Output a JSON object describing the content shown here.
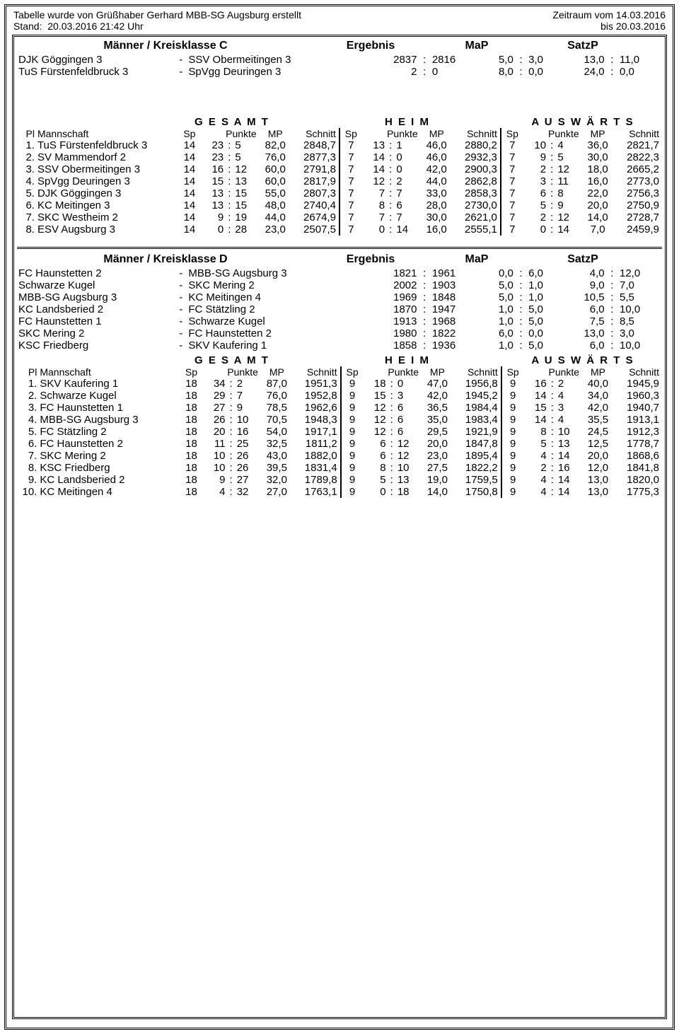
{
  "header": {
    "left1": "Tabelle wurde von Grüßhaber Gerhard MBB-SG Augsburg erstellt",
    "right1_label": "Zeitraum vom",
    "right1_date": "14.03.2016",
    "left2_label": "Stand:",
    "left2_value": "20.03.2016  21:42 Uhr",
    "right2_label": "bis",
    "right2_date": "20.03.2016"
  },
  "sectionC": {
    "title": "Männer / Kreisklasse C",
    "col_ergebnis": "Ergebnis",
    "col_map": "MaP",
    "col_satzp": "SatzP",
    "fixtures": [
      {
        "home": "DJK Göggingen 3",
        "away": "SSV Obermeitingen 3",
        "s1": "2837",
        "s2": "2816",
        "m1": "5,0",
        "m2": "3,0",
        "p1": "13,0",
        "p2": "11,0"
      },
      {
        "home": "TuS Fürstenfeldbruck 3",
        "away": "SpVgg Deuringen 3",
        "s1": "2",
        "s2": "0",
        "m1": "8,0",
        "m2": "0,0",
        "p1": "24,0",
        "p2": "0,0"
      }
    ],
    "gesamt": "G E S A M T",
    "heim": "H E I M",
    "auswaerts": "A U S W Ä R T S",
    "lbl_pl": "Pl",
    "lbl_mannschaft": "Mannschaft",
    "lbl_sp": "Sp",
    "lbl_punkte": "Punkte",
    "lbl_mp": "MP",
    "lbl_schnitt": "Schnitt",
    "rows": [
      {
        "pl": "1.",
        "team": "TuS Fürstenfeldbruck 3",
        "g": {
          "sp": "14",
          "p1": "23",
          "p2": "5",
          "mp": "82,0",
          "sc": "2848,7"
        },
        "h": {
          "sp": "7",
          "p1": "13",
          "p2": "1",
          "mp": "46,0",
          "sc": "2880,2"
        },
        "a": {
          "sp": "7",
          "p1": "10",
          "p2": "4",
          "mp": "36,0",
          "sc": "2821,7"
        }
      },
      {
        "pl": "2.",
        "team": "SV Mammendorf 2",
        "g": {
          "sp": "14",
          "p1": "23",
          "p2": "5",
          "mp": "76,0",
          "sc": "2877,3"
        },
        "h": {
          "sp": "7",
          "p1": "14",
          "p2": "0",
          "mp": "46,0",
          "sc": "2932,3"
        },
        "a": {
          "sp": "7",
          "p1": "9",
          "p2": "5",
          "mp": "30,0",
          "sc": "2822,3"
        }
      },
      {
        "pl": "3.",
        "team": "SSV Obermeitingen 3",
        "g": {
          "sp": "14",
          "p1": "16",
          "p2": "12",
          "mp": "60,0",
          "sc": "2791,8"
        },
        "h": {
          "sp": "7",
          "p1": "14",
          "p2": "0",
          "mp": "42,0",
          "sc": "2900,3"
        },
        "a": {
          "sp": "7",
          "p1": "2",
          "p2": "12",
          "mp": "18,0",
          "sc": "2665,2"
        }
      },
      {
        "pl": "4.",
        "team": "SpVgg Deuringen 3",
        "g": {
          "sp": "14",
          "p1": "15",
          "p2": "13",
          "mp": "60,0",
          "sc": "2817,9"
        },
        "h": {
          "sp": "7",
          "p1": "12",
          "p2": "2",
          "mp": "44,0",
          "sc": "2862,8"
        },
        "a": {
          "sp": "7",
          "p1": "3",
          "p2": "11",
          "mp": "16,0",
          "sc": "2773,0"
        }
      },
      {
        "pl": "5.",
        "team": "DJK Göggingen 3",
        "g": {
          "sp": "14",
          "p1": "13",
          "p2": "15",
          "mp": "55,0",
          "sc": "2807,3"
        },
        "h": {
          "sp": "7",
          "p1": "7",
          "p2": "7",
          "mp": "33,0",
          "sc": "2858,3"
        },
        "a": {
          "sp": "7",
          "p1": "6",
          "p2": "8",
          "mp": "22,0",
          "sc": "2756,3"
        }
      },
      {
        "pl": "6.",
        "team": "KC Meitingen 3",
        "g": {
          "sp": "14",
          "p1": "13",
          "p2": "15",
          "mp": "48,0",
          "sc": "2740,4"
        },
        "h": {
          "sp": "7",
          "p1": "8",
          "p2": "6",
          "mp": "28,0",
          "sc": "2730,0"
        },
        "a": {
          "sp": "7",
          "p1": "5",
          "p2": "9",
          "mp": "20,0",
          "sc": "2750,9"
        }
      },
      {
        "pl": "7.",
        "team": "SKC Westheim 2",
        "g": {
          "sp": "14",
          "p1": "9",
          "p2": "19",
          "mp": "44,0",
          "sc": "2674,9"
        },
        "h": {
          "sp": "7",
          "p1": "7",
          "p2": "7",
          "mp": "30,0",
          "sc": "2621,0"
        },
        "a": {
          "sp": "7",
          "p1": "2",
          "p2": "12",
          "mp": "14,0",
          "sc": "2728,7"
        }
      },
      {
        "pl": "8.",
        "team": "ESV Augsburg 3",
        "g": {
          "sp": "14",
          "p1": "0",
          "p2": "28",
          "mp": "23,0",
          "sc": "2507,5"
        },
        "h": {
          "sp": "7",
          "p1": "0",
          "p2": "14",
          "mp": "16,0",
          "sc": "2555,1"
        },
        "a": {
          "sp": "7",
          "p1": "0",
          "p2": "14",
          "mp": "7,0",
          "sc": "2459,9"
        }
      }
    ]
  },
  "sectionD": {
    "title": "Männer / Kreisklasse D",
    "col_ergebnis": "Ergebnis",
    "col_map": "MaP",
    "col_satzp": "SatzP",
    "fixtures": [
      {
        "home": "FC Haunstetten 2",
        "away": "MBB-SG Augsburg 3",
        "s1": "1821",
        "s2": "1961",
        "m1": "0,0",
        "m2": "6,0",
        "p1": "4,0",
        "p2": "12,0"
      },
      {
        "home": "Schwarze Kugel",
        "away": "SKC Mering 2",
        "s1": "2002",
        "s2": "1903",
        "m1": "5,0",
        "m2": "1,0",
        "p1": "9,0",
        "p2": "7,0"
      },
      {
        "home": "MBB-SG Augsburg 3",
        "away": "KC Meitingen 4",
        "s1": "1969",
        "s2": "1848",
        "m1": "5,0",
        "m2": "1,0",
        "p1": "10,5",
        "p2": "5,5"
      },
      {
        "home": "KC Landsberied 2",
        "away": "FC Stätzling 2",
        "s1": "1870",
        "s2": "1947",
        "m1": "1,0",
        "m2": "5,0",
        "p1": "6,0",
        "p2": "10,0"
      },
      {
        "home": "FC Haunstetten 1",
        "away": "Schwarze Kugel",
        "s1": "1913",
        "s2": "1968",
        "m1": "1,0",
        "m2": "5,0",
        "p1": "7,5",
        "p2": "8,5"
      },
      {
        "home": "SKC Mering 2",
        "away": "FC Haunstetten 2",
        "s1": "1980",
        "s2": "1822",
        "m1": "6,0",
        "m2": "0,0",
        "p1": "13,0",
        "p2": "3,0"
      },
      {
        "home": "KSC Friedberg",
        "away": "SKV Kaufering 1",
        "s1": "1858",
        "s2": "1936",
        "m1": "1,0",
        "m2": "5,0",
        "p1": "6,0",
        "p2": "10,0"
      }
    ],
    "gesamt": "G E S A M T",
    "heim": "H E I M",
    "auswaerts": "A U S W Ä R T S",
    "lbl_pl": "Pl",
    "lbl_mannschaft": "Mannschaft",
    "lbl_sp": "Sp",
    "lbl_punkte": "Punkte",
    "lbl_mp": "MP",
    "lbl_schnitt": "Schnitt",
    "rows": [
      {
        "pl": "1.",
        "team": "SKV Kaufering 1",
        "g": {
          "sp": "18",
          "p1": "34",
          "p2": "2",
          "mp": "87,0",
          "sc": "1951,3"
        },
        "h": {
          "sp": "9",
          "p1": "18",
          "p2": "0",
          "mp": "47,0",
          "sc": "1956,8"
        },
        "a": {
          "sp": "9",
          "p1": "16",
          "p2": "2",
          "mp": "40,0",
          "sc": "1945,9"
        }
      },
      {
        "pl": "2.",
        "team": "Schwarze Kugel",
        "g": {
          "sp": "18",
          "p1": "29",
          "p2": "7",
          "mp": "76,0",
          "sc": "1952,8"
        },
        "h": {
          "sp": "9",
          "p1": "15",
          "p2": "3",
          "mp": "42,0",
          "sc": "1945,2"
        },
        "a": {
          "sp": "9",
          "p1": "14",
          "p2": "4",
          "mp": "34,0",
          "sc": "1960,3"
        }
      },
      {
        "pl": "3.",
        "team": "FC Haunstetten 1",
        "g": {
          "sp": "18",
          "p1": "27",
          "p2": "9",
          "mp": "78,5",
          "sc": "1962,6"
        },
        "h": {
          "sp": "9",
          "p1": "12",
          "p2": "6",
          "mp": "36,5",
          "sc": "1984,4"
        },
        "a": {
          "sp": "9",
          "p1": "15",
          "p2": "3",
          "mp": "42,0",
          "sc": "1940,7"
        }
      },
      {
        "pl": "4.",
        "team": "MBB-SG Augsburg 3",
        "g": {
          "sp": "18",
          "p1": "26",
          "p2": "10",
          "mp": "70,5",
          "sc": "1948,3"
        },
        "h": {
          "sp": "9",
          "p1": "12",
          "p2": "6",
          "mp": "35,0",
          "sc": "1983,4"
        },
        "a": {
          "sp": "9",
          "p1": "14",
          "p2": "4",
          "mp": "35,5",
          "sc": "1913,1"
        }
      },
      {
        "pl": "5.",
        "team": "FC Stätzling 2",
        "g": {
          "sp": "18",
          "p1": "20",
          "p2": "16",
          "mp": "54,0",
          "sc": "1917,1"
        },
        "h": {
          "sp": "9",
          "p1": "12",
          "p2": "6",
          "mp": "29,5",
          "sc": "1921,9"
        },
        "a": {
          "sp": "9",
          "p1": "8",
          "p2": "10",
          "mp": "24,5",
          "sc": "1912,3"
        }
      },
      {
        "pl": "6.",
        "team": "FC Haunstetten 2",
        "g": {
          "sp": "18",
          "p1": "11",
          "p2": "25",
          "mp": "32,5",
          "sc": "1811,2"
        },
        "h": {
          "sp": "9",
          "p1": "6",
          "p2": "12",
          "mp": "20,0",
          "sc": "1847,8"
        },
        "a": {
          "sp": "9",
          "p1": "5",
          "p2": "13",
          "mp": "12,5",
          "sc": "1778,7"
        }
      },
      {
        "pl": "7.",
        "team": "SKC Mering 2",
        "g": {
          "sp": "18",
          "p1": "10",
          "p2": "26",
          "mp": "43,0",
          "sc": "1882,0"
        },
        "h": {
          "sp": "9",
          "p1": "6",
          "p2": "12",
          "mp": "23,0",
          "sc": "1895,4"
        },
        "a": {
          "sp": "9",
          "p1": "4",
          "p2": "14",
          "mp": "20,0",
          "sc": "1868,6"
        }
      },
      {
        "pl": "8.",
        "team": "KSC Friedberg",
        "g": {
          "sp": "18",
          "p1": "10",
          "p2": "26",
          "mp": "39,5",
          "sc": "1831,4"
        },
        "h": {
          "sp": "9",
          "p1": "8",
          "p2": "10",
          "mp": "27,5",
          "sc": "1822,2"
        },
        "a": {
          "sp": "9",
          "p1": "2",
          "p2": "16",
          "mp": "12,0",
          "sc": "1841,8"
        }
      },
      {
        "pl": "9.",
        "team": "KC Landsberied 2",
        "g": {
          "sp": "18",
          "p1": "9",
          "p2": "27",
          "mp": "32,0",
          "sc": "1789,8"
        },
        "h": {
          "sp": "9",
          "p1": "5",
          "p2": "13",
          "mp": "19,0",
          "sc": "1759,5"
        },
        "a": {
          "sp": "9",
          "p1": "4",
          "p2": "14",
          "mp": "13,0",
          "sc": "1820,0"
        }
      },
      {
        "pl": "10.",
        "team": "KC Meitingen 4",
        "g": {
          "sp": "18",
          "p1": "4",
          "p2": "32",
          "mp": "27,0",
          "sc": "1763,1"
        },
        "h": {
          "sp": "9",
          "p1": "0",
          "p2": "18",
          "mp": "14,0",
          "sc": "1750,8"
        },
        "a": {
          "sp": "9",
          "p1": "4",
          "p2": "14",
          "mp": "13,0",
          "sc": "1775,3"
        }
      }
    ]
  }
}
